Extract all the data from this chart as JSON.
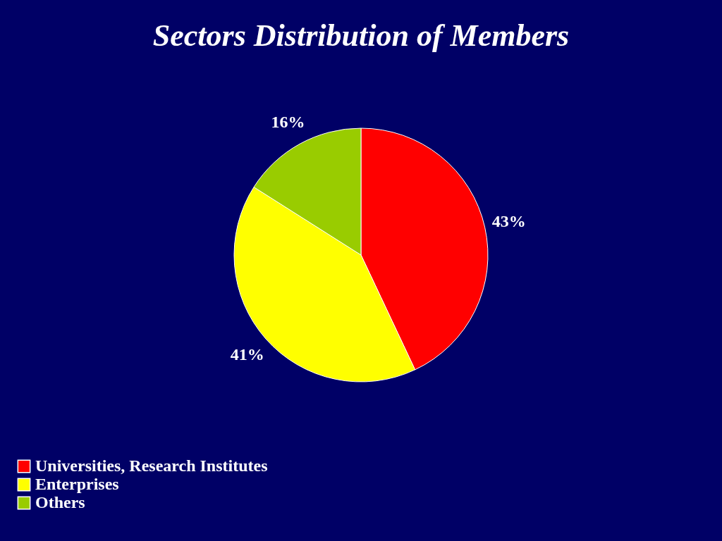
{
  "chart_data": {
    "type": "pie",
    "title": "Sectors Distribution of Members",
    "categories": [
      "Universities, Research Institutes",
      "Enterprises",
      "Others"
    ],
    "values": [
      43,
      41,
      16
    ],
    "colors": [
      "#ff0000",
      "#ffff00",
      "#99cc00"
    ],
    "value_labels": [
      "43%",
      "41%",
      "16%"
    ],
    "legend": "bottom"
  }
}
